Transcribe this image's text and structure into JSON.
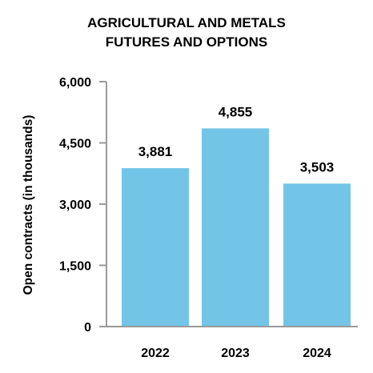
{
  "chart_data": {
    "type": "bar",
    "title": [
      "AGRICULTURAL AND METALS",
      "FUTURES AND OPTIONS"
    ],
    "xlabel": "",
    "ylabel": "Open contracts (in thousands)",
    "categories": [
      "2022",
      "2023",
      "2024"
    ],
    "values": [
      3881,
      4855,
      3503
    ],
    "data_labels": [
      "3,881",
      "4,855",
      "3,503"
    ],
    "yticks": [
      0,
      1500,
      3000,
      4500,
      6000
    ],
    "ytick_labels": [
      "0",
      "1,500",
      "3,000",
      "4,500",
      "6,000"
    ],
    "ylim": [
      0,
      6000
    ],
    "grid": false,
    "legend": "none",
    "colors": {
      "bar": "#73C5E8",
      "axis": "#9a9a9a",
      "text": "#000000"
    }
  }
}
